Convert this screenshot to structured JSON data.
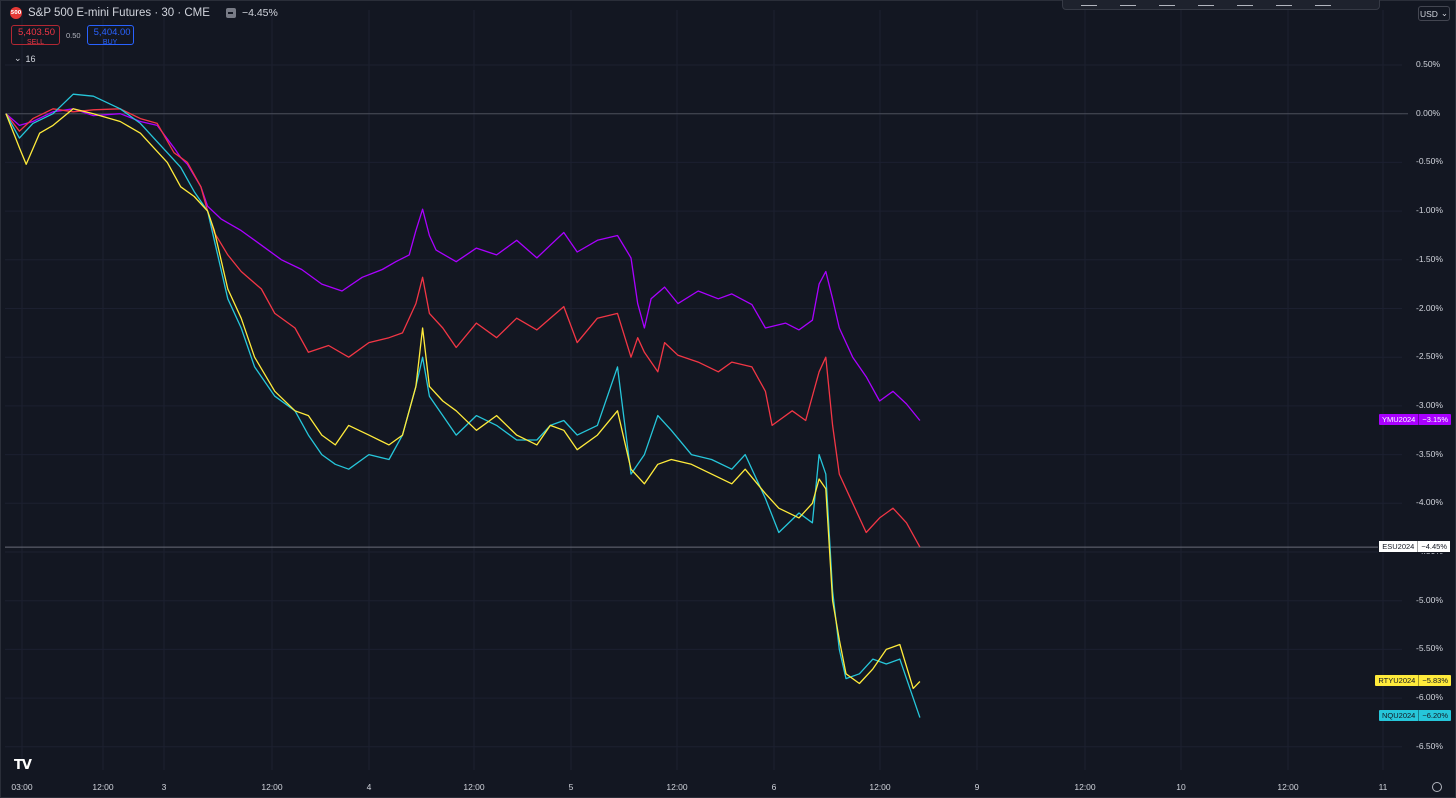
{
  "header": {
    "symbol_badge": "500",
    "title": "S&P 500 E-mini Futures · 30 · CME",
    "change": "−4.45%",
    "sell_price": "5,403.50",
    "sell_label": "SELL",
    "spread": "0.50",
    "buy_price": "5,404.00",
    "buy_label": "BUY",
    "indicators_count": "16",
    "currency": "USD"
  },
  "colors": {
    "ES": "#f23645",
    "YM": "#aa00ff",
    "RTY": "#ffeb3b",
    "NQ": "#26c6da",
    "bg": "#131722"
  },
  "chart_data": {
    "type": "line",
    "y_unit": "%",
    "ylim": [
      -6.75,
      0.75
    ],
    "y_ticks": [
      "0.50%",
      "0.00%",
      "-0.50%",
      "-1.00%",
      "-1.50%",
      "-2.00%",
      "-2.50%",
      "-3.00%",
      "-3.50%",
      "-4.00%",
      "-4.50%",
      "-5.00%",
      "-5.50%",
      "-6.00%",
      "-6.50%"
    ],
    "x_ticks": [
      "03:00",
      "12:00",
      "3",
      "12:00",
      "4",
      "12:00",
      "5",
      "12:00",
      "6",
      "12:00",
      "9",
      "12:00",
      "10",
      "12:00",
      "11"
    ],
    "series": [
      {
        "name": "YMU2024",
        "color": "#aa00ff",
        "last_label": "−3.15%",
        "values": [
          [
            0,
            0
          ],
          [
            4,
            -0.12
          ],
          [
            8,
            -0.08
          ],
          [
            14,
            0.02
          ],
          [
            20,
            0.05
          ],
          [
            26,
            -0.02
          ],
          [
            34,
            0.0
          ],
          [
            40,
            -0.08
          ],
          [
            45,
            -0.12
          ],
          [
            50,
            -0.35
          ],
          [
            52,
            -0.45
          ],
          [
            54,
            -0.52
          ],
          [
            58,
            -0.75
          ],
          [
            60,
            -0.95
          ],
          [
            64,
            -1.08
          ],
          [
            70,
            -1.2
          ],
          [
            76,
            -1.35
          ],
          [
            82,
            -1.5
          ],
          [
            88,
            -1.6
          ],
          [
            94,
            -1.75
          ],
          [
            100,
            -1.82
          ],
          [
            106,
            -1.68
          ],
          [
            112,
            -1.6
          ],
          [
            116,
            -1.52
          ],
          [
            120,
            -1.45
          ],
          [
            122,
            -1.2
          ],
          [
            124,
            -0.98
          ],
          [
            126,
            -1.25
          ],
          [
            128,
            -1.4
          ],
          [
            134,
            -1.52
          ],
          [
            140,
            -1.38
          ],
          [
            146,
            -1.45
          ],
          [
            152,
            -1.3
          ],
          [
            158,
            -1.48
          ],
          [
            162,
            -1.35
          ],
          [
            166,
            -1.22
          ],
          [
            170,
            -1.42
          ],
          [
            176,
            -1.3
          ],
          [
            182,
            -1.25
          ],
          [
            186,
            -1.48
          ],
          [
            188,
            -1.95
          ],
          [
            190,
            -2.2
          ],
          [
            192,
            -1.9
          ],
          [
            196,
            -1.78
          ],
          [
            200,
            -1.95
          ],
          [
            206,
            -1.82
          ],
          [
            212,
            -1.9
          ],
          [
            216,
            -1.85
          ],
          [
            222,
            -1.96
          ],
          [
            226,
            -2.2
          ],
          [
            232,
            -2.15
          ],
          [
            236,
            -2.22
          ],
          [
            240,
            -2.12
          ],
          [
            242,
            -1.75
          ],
          [
            244,
            -1.62
          ],
          [
            246,
            -1.9
          ],
          [
            248,
            -2.2
          ],
          [
            252,
            -2.5
          ],
          [
            256,
            -2.7
          ],
          [
            260,
            -2.95
          ],
          [
            264,
            -2.85
          ],
          [
            268,
            -2.98
          ],
          [
            272,
            -3.15
          ]
        ]
      },
      {
        "name": "ESU2024",
        "color": "#f23645",
        "last_label": "−4.45%",
        "values": [
          [
            0,
            0
          ],
          [
            4,
            -0.18
          ],
          [
            8,
            -0.05
          ],
          [
            14,
            0.05
          ],
          [
            20,
            0.02
          ],
          [
            26,
            0.04
          ],
          [
            34,
            0.05
          ],
          [
            40,
            -0.05
          ],
          [
            45,
            -0.1
          ],
          [
            50,
            -0.4
          ],
          [
            54,
            -0.5
          ],
          [
            58,
            -0.75
          ],
          [
            60,
            -1.0
          ],
          [
            62,
            -1.22
          ],
          [
            66,
            -1.45
          ],
          [
            70,
            -1.62
          ],
          [
            76,
            -1.8
          ],
          [
            80,
            -2.05
          ],
          [
            86,
            -2.2
          ],
          [
            90,
            -2.45
          ],
          [
            96,
            -2.38
          ],
          [
            102,
            -2.5
          ],
          [
            108,
            -2.35
          ],
          [
            114,
            -2.3
          ],
          [
            118,
            -2.25
          ],
          [
            122,
            -1.95
          ],
          [
            124,
            -1.68
          ],
          [
            126,
            -2.05
          ],
          [
            130,
            -2.2
          ],
          [
            134,
            -2.4
          ],
          [
            140,
            -2.15
          ],
          [
            146,
            -2.3
          ],
          [
            152,
            -2.1
          ],
          [
            158,
            -2.22
          ],
          [
            162,
            -2.1
          ],
          [
            166,
            -1.98
          ],
          [
            170,
            -2.35
          ],
          [
            176,
            -2.1
          ],
          [
            182,
            -2.05
          ],
          [
            186,
            -2.5
          ],
          [
            188,
            -2.3
          ],
          [
            190,
            -2.45
          ],
          [
            194,
            -2.65
          ],
          [
            196,
            -2.35
          ],
          [
            200,
            -2.48
          ],
          [
            206,
            -2.55
          ],
          [
            212,
            -2.65
          ],
          [
            216,
            -2.55
          ],
          [
            222,
            -2.6
          ],
          [
            226,
            -2.85
          ],
          [
            228,
            -3.2
          ],
          [
            234,
            -3.05
          ],
          [
            238,
            -3.15
          ],
          [
            242,
            -2.65
          ],
          [
            244,
            -2.5
          ],
          [
            246,
            -3.2
          ],
          [
            248,
            -3.7
          ],
          [
            252,
            -4.0
          ],
          [
            256,
            -4.3
          ],
          [
            260,
            -4.15
          ],
          [
            264,
            -4.05
          ],
          [
            268,
            -4.2
          ],
          [
            272,
            -4.45
          ]
        ]
      },
      {
        "name": "RTYU2024",
        "color": "#ffeb3b",
        "last_label": "−5.83%",
        "values": [
          [
            0,
            0
          ],
          [
            4,
            -0.35
          ],
          [
            6,
            -0.52
          ],
          [
            10,
            -0.2
          ],
          [
            14,
            -0.12
          ],
          [
            20,
            0.05
          ],
          [
            26,
            0.0
          ],
          [
            34,
            -0.08
          ],
          [
            40,
            -0.2
          ],
          [
            44,
            -0.35
          ],
          [
            48,
            -0.5
          ],
          [
            52,
            -0.75
          ],
          [
            56,
            -0.85
          ],
          [
            60,
            -1.0
          ],
          [
            62,
            -1.2
          ],
          [
            66,
            -1.8
          ],
          [
            70,
            -2.1
          ],
          [
            74,
            -2.5
          ],
          [
            80,
            -2.85
          ],
          [
            86,
            -3.05
          ],
          [
            90,
            -3.1
          ],
          [
            94,
            -3.3
          ],
          [
            98,
            -3.4
          ],
          [
            102,
            -3.2
          ],
          [
            108,
            -3.3
          ],
          [
            114,
            -3.4
          ],
          [
            118,
            -3.3
          ],
          [
            122,
            -2.8
          ],
          [
            124,
            -2.2
          ],
          [
            126,
            -2.8
          ],
          [
            130,
            -2.95
          ],
          [
            134,
            -3.05
          ],
          [
            140,
            -3.25
          ],
          [
            146,
            -3.1
          ],
          [
            152,
            -3.3
          ],
          [
            158,
            -3.4
          ],
          [
            162,
            -3.2
          ],
          [
            166,
            -3.25
          ],
          [
            170,
            -3.45
          ],
          [
            176,
            -3.3
          ],
          [
            182,
            -3.05
          ],
          [
            186,
            -3.65
          ],
          [
            190,
            -3.8
          ],
          [
            194,
            -3.6
          ],
          [
            198,
            -3.55
          ],
          [
            204,
            -3.6
          ],
          [
            210,
            -3.7
          ],
          [
            216,
            -3.8
          ],
          [
            220,
            -3.65
          ],
          [
            226,
            -3.9
          ],
          [
            230,
            -4.05
          ],
          [
            236,
            -4.15
          ],
          [
            240,
            -4.0
          ],
          [
            242,
            -3.75
          ],
          [
            244,
            -3.85
          ],
          [
            246,
            -5.0
          ],
          [
            248,
            -5.4
          ],
          [
            250,
            -5.75
          ],
          [
            254,
            -5.85
          ],
          [
            258,
            -5.7
          ],
          [
            262,
            -5.5
          ],
          [
            266,
            -5.45
          ],
          [
            270,
            -5.9
          ],
          [
            272,
            -5.83
          ]
        ]
      },
      {
        "name": "NQU2024",
        "color": "#26c6da",
        "last_label": "−6.20%",
        "values": [
          [
            0,
            0
          ],
          [
            4,
            -0.25
          ],
          [
            8,
            -0.1
          ],
          [
            14,
            0.0
          ],
          [
            20,
            0.2
          ],
          [
            26,
            0.18
          ],
          [
            34,
            0.05
          ],
          [
            40,
            -0.1
          ],
          [
            44,
            -0.25
          ],
          [
            48,
            -0.4
          ],
          [
            52,
            -0.55
          ],
          [
            56,
            -0.8
          ],
          [
            60,
            -1.0
          ],
          [
            62,
            -1.3
          ],
          [
            66,
            -1.9
          ],
          [
            70,
            -2.2
          ],
          [
            74,
            -2.6
          ],
          [
            80,
            -2.9
          ],
          [
            86,
            -3.05
          ],
          [
            90,
            -3.3
          ],
          [
            94,
            -3.5
          ],
          [
            98,
            -3.6
          ],
          [
            102,
            -3.65
          ],
          [
            108,
            -3.5
          ],
          [
            114,
            -3.55
          ],
          [
            118,
            -3.3
          ],
          [
            122,
            -2.8
          ],
          [
            124,
            -2.5
          ],
          [
            126,
            -2.9
          ],
          [
            130,
            -3.1
          ],
          [
            134,
            -3.3
          ],
          [
            140,
            -3.1
          ],
          [
            146,
            -3.2
          ],
          [
            152,
            -3.35
          ],
          [
            158,
            -3.35
          ],
          [
            162,
            -3.2
          ],
          [
            166,
            -3.15
          ],
          [
            170,
            -3.3
          ],
          [
            176,
            -3.2
          ],
          [
            182,
            -2.6
          ],
          [
            186,
            -3.7
          ],
          [
            190,
            -3.5
          ],
          [
            194,
            -3.1
          ],
          [
            198,
            -3.25
          ],
          [
            204,
            -3.5
          ],
          [
            210,
            -3.55
          ],
          [
            216,
            -3.65
          ],
          [
            220,
            -3.5
          ],
          [
            226,
            -3.95
          ],
          [
            230,
            -4.3
          ],
          [
            236,
            -4.1
          ],
          [
            240,
            -4.2
          ],
          [
            242,
            -3.5
          ],
          [
            244,
            -3.7
          ],
          [
            246,
            -4.9
          ],
          [
            248,
            -5.5
          ],
          [
            250,
            -5.8
          ],
          [
            254,
            -5.75
          ],
          [
            258,
            -5.6
          ],
          [
            262,
            -5.65
          ],
          [
            266,
            -5.6
          ],
          [
            270,
            -6.0
          ],
          [
            272,
            -6.2
          ]
        ]
      }
    ]
  },
  "tags": [
    {
      "name": "YMU2024",
      "value": "−3.15%"
    },
    {
      "name": "ESU2024",
      "value": "−4.45%"
    },
    {
      "name": "RTYU2024",
      "value": "−5.83%"
    },
    {
      "name": "NQU2024",
      "value": "−6.20%"
    }
  ],
  "logo": "TV"
}
